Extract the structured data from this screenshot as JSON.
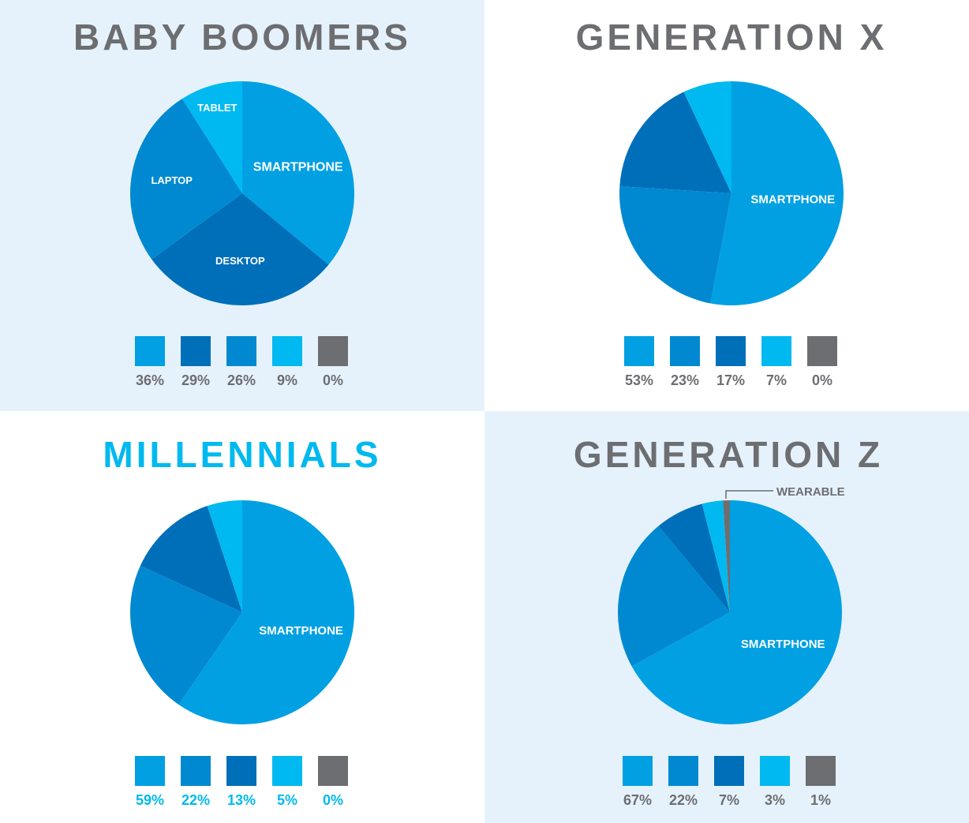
{
  "colors": {
    "smartphone": "#00a0e3",
    "laptop": "#0089d0",
    "desktop": "#006fba",
    "tablet": "#00b9f0",
    "wearable": "#6d6e71"
  },
  "chart_data": [
    {
      "type": "pie",
      "title": "BABY BOOMERS",
      "slices": [
        {
          "category": "smartphone",
          "label": "SMARTPHONE",
          "value": 36
        },
        {
          "category": "desktop",
          "label": "DESKTOP",
          "value": 29
        },
        {
          "category": "laptop",
          "label": "LAPTOP",
          "value": 26
        },
        {
          "category": "tablet",
          "label": "TABLET",
          "value": 9
        },
        {
          "category": "wearable",
          "value": 0
        }
      ],
      "legend": [
        "36%",
        "29%",
        "26%",
        "9%",
        "0%"
      ]
    },
    {
      "type": "pie",
      "title": "GENERATION X",
      "slices": [
        {
          "category": "smartphone",
          "label": "SMARTPHONE",
          "value": 53
        },
        {
          "category": "laptop",
          "value": 23
        },
        {
          "category": "desktop",
          "value": 17
        },
        {
          "category": "tablet",
          "value": 7
        },
        {
          "category": "wearable",
          "value": 0
        }
      ],
      "legend": [
        "53%",
        "23%",
        "17%",
        "7%",
        "0%"
      ]
    },
    {
      "type": "pie",
      "title": "MILLENNIALS",
      "slices": [
        {
          "category": "smartphone",
          "label": "SMARTPHONE",
          "value": 59
        },
        {
          "category": "laptop",
          "value": 22
        },
        {
          "category": "desktop",
          "value": 13
        },
        {
          "category": "tablet",
          "value": 5
        },
        {
          "category": "wearable",
          "value": 0
        }
      ],
      "legend": [
        "59%",
        "22%",
        "13%",
        "5%",
        "0%"
      ]
    },
    {
      "type": "pie",
      "title": "GENERATION Z",
      "slices": [
        {
          "category": "smartphone",
          "label": "SMARTPHONE",
          "value": 67
        },
        {
          "category": "laptop",
          "value": 22
        },
        {
          "category": "desktop",
          "value": 7
        },
        {
          "category": "tablet",
          "value": 3
        },
        {
          "category": "wearable",
          "value": 1
        }
      ],
      "legend": [
        "67%",
        "22%",
        "7%",
        "3%",
        "1%"
      ],
      "annotation": "WEARABLE"
    }
  ]
}
